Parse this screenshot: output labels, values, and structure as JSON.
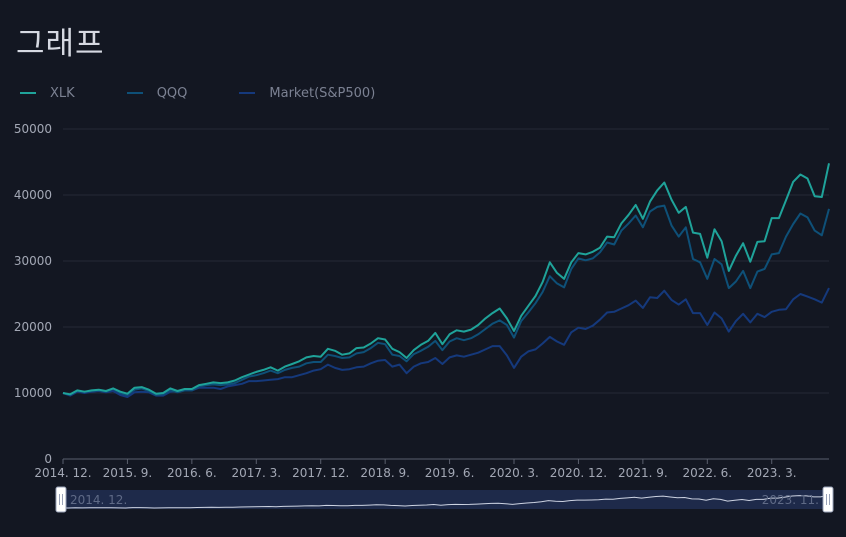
{
  "page": {
    "title": "그래프"
  },
  "chart_data": {
    "type": "line",
    "title": "그래프",
    "legend_position": "top-left",
    "grid": true,
    "ylim": [
      0,
      50000
    ],
    "y_ticks": [
      0,
      10000,
      20000,
      30000,
      40000,
      50000
    ],
    "y_tick_labels": [
      "0",
      "10000",
      "20000",
      "30000",
      "40000",
      "50000"
    ],
    "x_tick_labels": [
      "2014. 12.",
      "2015. 9.",
      "2016. 6.",
      "2017. 3.",
      "2017. 12.",
      "2018. 9.",
      "2019. 6.",
      "2020. 3.",
      "2020. 12.",
      "2021. 9.",
      "2022. 6.",
      "2023. 3."
    ],
    "x_range": [
      "2014. 12.",
      "2023. 11."
    ],
    "x": [
      "2014-12",
      "2015-01",
      "2015-02",
      "2015-03",
      "2015-04",
      "2015-05",
      "2015-06",
      "2015-07",
      "2015-08",
      "2015-09",
      "2015-10",
      "2015-11",
      "2015-12",
      "2016-01",
      "2016-02",
      "2016-03",
      "2016-04",
      "2016-05",
      "2016-06",
      "2016-07",
      "2016-08",
      "2016-09",
      "2016-10",
      "2016-11",
      "2016-12",
      "2017-01",
      "2017-02",
      "2017-03",
      "2017-04",
      "2017-05",
      "2017-06",
      "2017-07",
      "2017-08",
      "2017-09",
      "2017-10",
      "2017-11",
      "2017-12",
      "2018-01",
      "2018-02",
      "2018-03",
      "2018-04",
      "2018-05",
      "2018-06",
      "2018-07",
      "2018-08",
      "2018-09",
      "2018-10",
      "2018-11",
      "2018-12",
      "2019-01",
      "2019-02",
      "2019-03",
      "2019-04",
      "2019-05",
      "2019-06",
      "2019-07",
      "2019-08",
      "2019-09",
      "2019-10",
      "2019-11",
      "2019-12",
      "2020-01",
      "2020-02",
      "2020-03",
      "2020-04",
      "2020-05",
      "2020-06",
      "2020-07",
      "2020-08",
      "2020-09",
      "2020-10",
      "2020-11",
      "2020-12",
      "2021-01",
      "2021-02",
      "2021-03",
      "2021-04",
      "2021-05",
      "2021-06",
      "2021-07",
      "2021-08",
      "2021-09",
      "2021-10",
      "2021-11",
      "2021-12",
      "2022-01",
      "2022-02",
      "2022-03",
      "2022-04",
      "2022-05",
      "2022-06",
      "2022-07",
      "2022-08",
      "2022-09",
      "2022-10",
      "2022-11",
      "2022-12",
      "2023-01",
      "2023-02",
      "2023-03",
      "2023-04",
      "2023-05",
      "2023-06",
      "2023-07",
      "2023-08",
      "2023-09",
      "2023-10",
      "2023-11"
    ],
    "series": [
      {
        "name": "XLK",
        "color": "#1fa39a",
        "values": [
          10000,
          9800,
          10400,
          10200,
          10400,
          10500,
          10300,
          10700,
          10200,
          9900,
          10800,
          10900,
          10500,
          9900,
          10000,
          10700,
          10300,
          10600,
          10600,
          11200,
          11400,
          11600,
          11500,
          11600,
          11900,
          12400,
          12800,
          13200,
          13500,
          13900,
          13400,
          14000,
          14400,
          14800,
          15400,
          15600,
          15500,
          16700,
          16400,
          15800,
          16000,
          16800,
          16900,
          17500,
          18300,
          18100,
          16700,
          16200,
          15300,
          16500,
          17300,
          17900,
          19100,
          17400,
          18900,
          19500,
          19300,
          19600,
          20300,
          21300,
          22100,
          22800,
          21300,
          19400,
          21700,
          23200,
          24700,
          26800,
          29800,
          28200,
          27300,
          29800,
          31200,
          31000,
          31400,
          32000,
          33700,
          33600,
          35700,
          37000,
          38500,
          36400,
          39000,
          40700,
          41900,
          39300,
          37300,
          38200,
          34300,
          34100,
          30500,
          34800,
          33000,
          28500,
          30800,
          32700,
          29900,
          32900,
          33000,
          36500,
          36500,
          39200,
          42000,
          43100,
          42500,
          39800,
          39700,
          44800
        ]
      },
      {
        "name": "QQQ",
        "color": "#0e5078",
        "values": [
          10000,
          9700,
          10300,
          10200,
          10300,
          10400,
          10200,
          10600,
          10000,
          9700,
          10500,
          10700,
          10300,
          9700,
          9800,
          10400,
          10100,
          10400,
          10400,
          11000,
          11200,
          11300,
          11200,
          11300,
          11500,
          12000,
          12500,
          12700,
          13000,
          13400,
          13000,
          13500,
          13800,
          14000,
          14500,
          14700,
          14700,
          15800,
          15600,
          15300,
          15400,
          16000,
          16200,
          16800,
          17600,
          17400,
          15800,
          15600,
          14800,
          15900,
          16400,
          17000,
          17900,
          16500,
          17800,
          18300,
          18000,
          18300,
          18900,
          19700,
          20500,
          21000,
          20300,
          18400,
          20900,
          22200,
          23600,
          25300,
          27700,
          26600,
          26000,
          28800,
          30400,
          30100,
          30400,
          31300,
          32800,
          32500,
          34600,
          35700,
          36900,
          35100,
          37500,
          38200,
          38400,
          35400,
          33700,
          35100,
          30300,
          29800,
          27300,
          30300,
          29500,
          25900,
          26900,
          28500,
          25900,
          28400,
          28800,
          31000,
          31200,
          33700,
          35600,
          37200,
          36600,
          34600,
          33900,
          37900
        ]
      },
      {
        "name": "Market(S&P500)",
        "color": "#15397c",
        "values": [
          10000,
          9600,
          10200,
          10000,
          10200,
          10300,
          10100,
          10300,
          9700,
          9400,
          10100,
          10200,
          10100,
          9600,
          9600,
          10200,
          10300,
          10400,
          10400,
          10800,
          10800,
          10800,
          10600,
          11000,
          11200,
          11400,
          11800,
          11800,
          11900,
          12000,
          12100,
          12400,
          12400,
          12700,
          13000,
          13400,
          13600,
          14300,
          13800,
          13500,
          13600,
          13900,
          14000,
          14500,
          14900,
          15000,
          14000,
          14300,
          13000,
          14000,
          14500,
          14700,
          15300,
          14400,
          15400,
          15700,
          15500,
          15800,
          16100,
          16600,
          17100,
          17100,
          15700,
          13800,
          15500,
          16300,
          16600,
          17500,
          18500,
          17800,
          17300,
          19200,
          19900,
          19700,
          20200,
          21100,
          22200,
          22300,
          22800,
          23300,
          24000,
          22900,
          24500,
          24400,
          25500,
          24100,
          23400,
          24200,
          22100,
          22100,
          20300,
          22200,
          21300,
          19300,
          20900,
          22000,
          20700,
          22000,
          21500,
          22300,
          22600,
          22700,
          24200,
          25000,
          24600,
          24200,
          23700,
          25900
        ]
      }
    ]
  }
}
